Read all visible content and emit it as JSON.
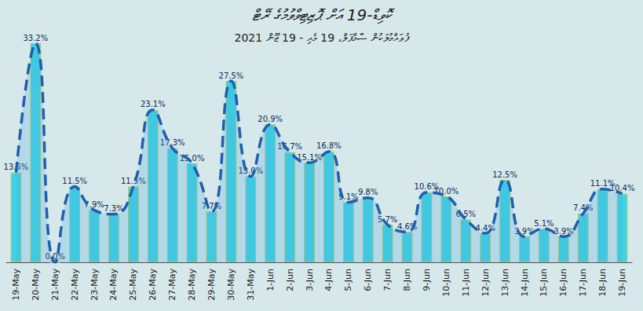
{
  "chart_data": {
    "type": "bar",
    "title": "ކޮވިޑް-19 އަށް ޕޮޒިޓިވްވުމުގެ ރޭޓް",
    "subtitle": "ފުވައްމުލަކުން ސާމްޕަލް، 19 މެއި - 19 ޖޫން 2021",
    "categories": [
      "19-May",
      "20-May",
      "21-May",
      "22-May",
      "23-May",
      "24-May",
      "25-May",
      "26-May",
      "27-May",
      "28-May",
      "29-May",
      "30-May",
      "31-May",
      "1-Jun",
      "2-Jun",
      "3-Jun",
      "4-Jun",
      "5-Jun",
      "6-Jun",
      "7-Jun",
      "8-Jun",
      "9-Jun",
      "10-Jun",
      "11-Jun",
      "12-Jun",
      "13-Jun",
      "14-Jun",
      "15-Jun",
      "16-Jun",
      "17-Jun",
      "18-Jun",
      "19-Jun"
    ],
    "values": [
      13.6,
      33.2,
      0.0,
      11.5,
      7.9,
      7.3,
      11.5,
      23.1,
      17.3,
      15.0,
      7.7,
      27.5,
      13.0,
      20.9,
      16.7,
      15.1,
      16.8,
      9.1,
      9.8,
      5.7,
      4.6,
      10.6,
      10.0,
      6.5,
      4.4,
      12.5,
      3.9,
      5.1,
      3.9,
      7.4,
      11.1,
      10.4
    ],
    "value_labels": [
      "13.6%",
      "33.2%",
      "0.0%",
      "11.5%",
      "7.9%",
      "7.3%",
      "11.5%",
      "23.1%",
      "17.3%",
      "15.0%",
      "7.7%",
      "27.5%",
      "13.0%",
      "20.9%",
      "16.7%",
      "15.1%",
      "16.8%",
      "9.1%",
      "9.8%",
      "5.7%",
      "4.6%",
      "10.6%",
      "10.0%",
      "6.5%",
      "4.4%",
      "12.5%",
      "3.9%",
      "5.1%",
      "3.9%",
      "7.4%",
      "11.1%",
      "10.4%"
    ],
    "color": "#3fd3e3",
    "ylim": [
      0,
      35
    ],
    "grid": false,
    "data_labels": true,
    "tick_labels": "x"
  }
}
